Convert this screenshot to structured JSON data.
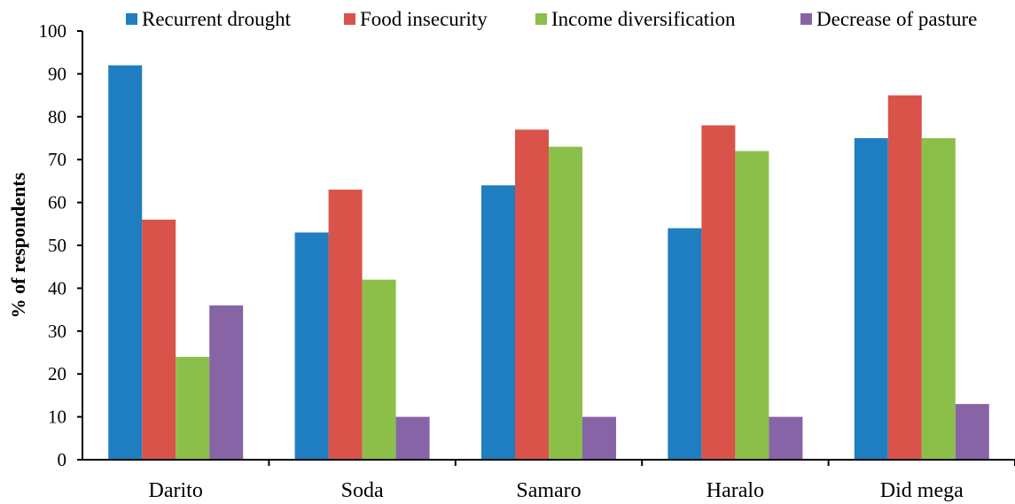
{
  "chart_data": {
    "type": "bar",
    "categories": [
      "Darito",
      "Soda",
      "Samaro",
      "Haralo",
      "Did mega"
    ],
    "series": [
      {
        "name": "Recurrent drought",
        "values": [
          92,
          53,
          64,
          54,
          75
        ],
        "color": "#1f7ec0"
      },
      {
        "name": "Food insecurity",
        "values": [
          56,
          63,
          77,
          78,
          85
        ],
        "color": "#d9534a"
      },
      {
        "name": "Income diversification",
        "values": [
          24,
          42,
          73,
          72,
          75
        ],
        "color": "#8cbf4a"
      },
      {
        "name": "Decrease of pasture",
        "values": [
          36,
          10,
          10,
          10,
          13
        ],
        "color": "#8664a6"
      }
    ],
    "title": "",
    "xlabel": "",
    "ylabel": "% of respondents",
    "ylim": [
      0,
      100
    ],
    "yticks": [
      0,
      10,
      20,
      30,
      40,
      50,
      60,
      70,
      80,
      90,
      100
    ],
    "grid": false,
    "legend_position": "top"
  }
}
